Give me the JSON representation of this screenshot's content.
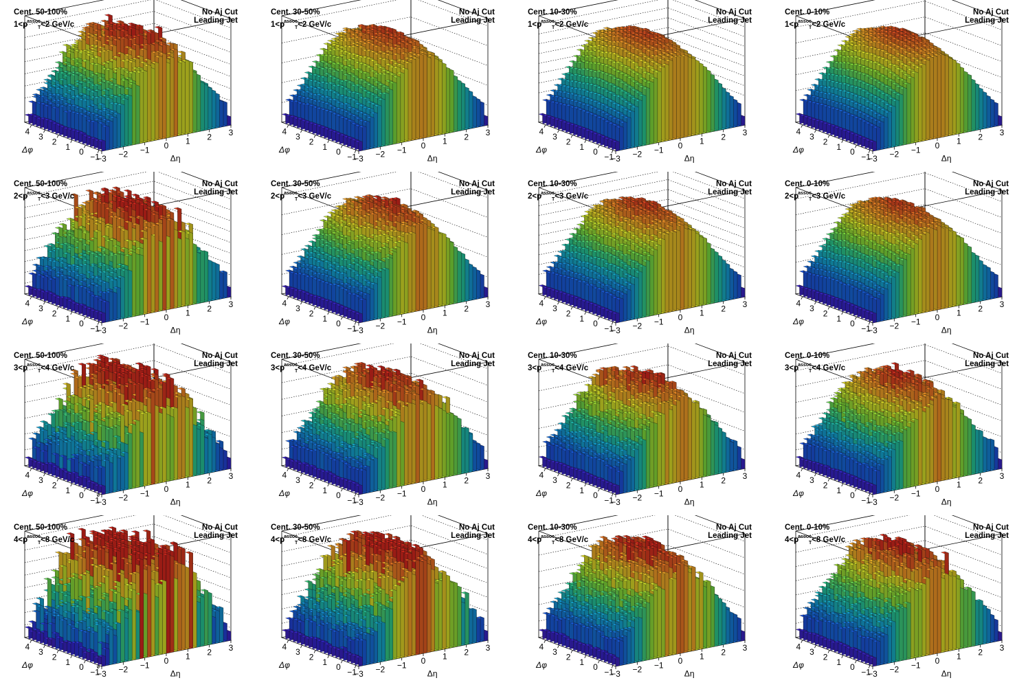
{
  "chart_data": [
    {
      "type": "3d-bar",
      "centrality": "Cent. 50-100%",
      "pt_lo": "1",
      "pt_hi": "2",
      "aj_cut": "No Aj Cut",
      "jet": "Leading Jet",
      "xlabel": "Δη",
      "ylabel": "Δφ",
      "x_range": [
        -3,
        3
      ],
      "y_range": [
        -1.2,
        4.5
      ],
      "z_ticks": [
        "0.02",
        "0.03",
        "0.04",
        "0.05",
        "0.06",
        "0.07",
        "0.08"
      ],
      "zmax": 0.085,
      "noise": 0.09,
      "spikes": 0.1
    },
    {
      "type": "3d-bar",
      "centrality": "Cent. 30-50%",
      "pt_lo": "1",
      "pt_hi": "2",
      "aj_cut": "No Aj Cut",
      "jet": "Leading Jet",
      "xlabel": "Δη",
      "ylabel": "Δφ",
      "x_range": [
        -3,
        3
      ],
      "y_range": [
        -1.2,
        4.5
      ],
      "z_ticks": [
        "0.005",
        "0.01",
        "0.015",
        "0.02",
        "0.025"
      ],
      "zmax": 0.026,
      "noise": 0.03,
      "spikes": 0.04
    },
    {
      "type": "3d-bar",
      "centrality": "Cent. 10-30%",
      "pt_lo": "1",
      "pt_hi": "2",
      "aj_cut": "No Aj Cut",
      "jet": "Leading Jet",
      "xlabel": "Δη",
      "ylabel": "Δφ",
      "x_range": [
        -3,
        3
      ],
      "y_range": [
        -1.2,
        4.5
      ],
      "z_ticks": [
        "0.003",
        "0.004",
        "0.005",
        "0.006",
        "0.007",
        "0.008",
        "0.009",
        "0.01"
      ],
      "zmax": 0.0105,
      "noise": 0.015,
      "spikes": 0.02
    },
    {
      "type": "3d-bar",
      "centrality": "Cent. 0-10%",
      "pt_lo": "1",
      "pt_hi": "2",
      "aj_cut": "No Aj Cut",
      "jet": "Leading Jet",
      "xlabel": "Δη",
      "ylabel": "Δφ",
      "x_range": [
        -3,
        3
      ],
      "y_range": [
        -1.2,
        4.5
      ],
      "z_ticks": [
        "0.004",
        "0.006",
        "0.008",
        "0.01",
        "0.012"
      ],
      "zmax": 0.013,
      "noise": 0.012,
      "spikes": 0.015
    },
    {
      "type": "3d-bar",
      "centrality": "Cent. 50-100%",
      "pt_lo": "2",
      "pt_hi": "3",
      "aj_cut": "No Aj Cut",
      "jet": "Leading Jet",
      "xlabel": "Δη",
      "ylabel": "Δφ",
      "x_range": [
        -3,
        3
      ],
      "y_range": [
        -1.2,
        4.5
      ],
      "z_ticks": [
        "0.01",
        "0.02",
        "0.03",
        "0.04",
        "0.05",
        "0.06",
        "0.07",
        "0.08",
        "0.09"
      ],
      "zmax": 0.095,
      "noise": 0.14,
      "spikes": 0.14
    },
    {
      "type": "3d-bar",
      "centrality": "Cent. 30-50%",
      "pt_lo": "2",
      "pt_hi": "3",
      "aj_cut": "No Aj Cut",
      "jet": "Leading Jet",
      "xlabel": "Δη",
      "ylabel": "Δφ",
      "x_range": [
        -3,
        3
      ],
      "y_range": [
        -1.2,
        4.5
      ],
      "z_ticks": [
        "0.005",
        "0.01",
        "0.015",
        "0.02",
        "0.025"
      ],
      "zmax": 0.026,
      "noise": 0.05,
      "spikes": 0.06
    },
    {
      "type": "3d-bar",
      "centrality": "Cent. 10-30%",
      "pt_lo": "2",
      "pt_hi": "3",
      "aj_cut": "No Aj Cut",
      "jet": "Leading Jet",
      "xlabel": "Δη",
      "ylabel": "Δφ",
      "x_range": [
        -3,
        3
      ],
      "y_range": [
        -1.2,
        4.5
      ],
      "z_ticks": [
        "0.002",
        "0.003",
        "0.004",
        "0.005",
        "0.006",
        "0.007",
        "0.008",
        "0.009",
        "0.01"
      ],
      "zmax": 0.0105,
      "noise": 0.03,
      "spikes": 0.04
    },
    {
      "type": "3d-bar",
      "centrality": "Cent. 0-10%",
      "pt_lo": "2",
      "pt_hi": "3",
      "aj_cut": "No Aj Cut",
      "jet": "Leading Jet",
      "xlabel": "Δη",
      "ylabel": "Δφ",
      "x_range": [
        -3,
        3
      ],
      "y_range": [
        -1.2,
        4.5
      ],
      "z_ticks": [
        "0.004",
        "0.006",
        "0.008",
        "0.01",
        "0.012"
      ],
      "zmax": 0.013,
      "noise": 0.025,
      "spikes": 0.03
    },
    {
      "type": "3d-bar",
      "centrality": "Cent. 50-100%",
      "pt_lo": "3",
      "pt_hi": "4",
      "aj_cut": "No Aj Cut",
      "jet": "Leading Jet",
      "xlabel": "Δη",
      "ylabel": "Δφ",
      "x_range": [
        -3,
        3
      ],
      "y_range": [
        -1.2,
        4.5
      ],
      "z_ticks": [
        "0",
        "0.02",
        "0.04",
        "0.06",
        "0.08",
        "0.1",
        "0.12"
      ],
      "zmax": 0.13,
      "noise": 0.22,
      "spikes": 0.2
    },
    {
      "type": "3d-bar",
      "centrality": "Cent. 30-50%",
      "pt_lo": "3",
      "pt_hi": "4",
      "aj_cut": "No Aj Cut",
      "jet": "Leading Jet",
      "xlabel": "Δη",
      "ylabel": "Δφ",
      "x_range": [
        -3,
        3
      ],
      "y_range": [
        -1.2,
        4.5
      ],
      "z_ticks": [
        "0.005",
        "0.01",
        "0.015",
        "0.02",
        "0.025",
        "0.03"
      ],
      "zmax": 0.031,
      "noise": 0.1,
      "spikes": 0.1
    },
    {
      "type": "3d-bar",
      "centrality": "Cent. 10-30%",
      "pt_lo": "3",
      "pt_hi": "4",
      "aj_cut": "No Aj Cut",
      "jet": "Leading Jet",
      "xlabel": "Δη",
      "ylabel": "Δφ",
      "x_range": [
        -3,
        3
      ],
      "y_range": [
        -1.2,
        4.5
      ],
      "z_ticks": [
        "0.002",
        "0.004",
        "0.006",
        "0.008",
        "0.01"
      ],
      "zmax": 0.011,
      "noise": 0.07,
      "spikes": 0.08
    },
    {
      "type": "3d-bar",
      "centrality": "Cent. 0-10%",
      "pt_lo": "3",
      "pt_hi": "4",
      "aj_cut": "No Aj Cut",
      "jet": "Leading Jet",
      "xlabel": "Δη",
      "ylabel": "Δφ",
      "x_range": [
        -3,
        3
      ],
      "y_range": [
        -1.2,
        4.5
      ],
      "z_ticks": [
        "0.002",
        "0.004",
        "0.006",
        "0.008",
        "0.01",
        "0.012"
      ],
      "zmax": 0.013,
      "noise": 0.06,
      "spikes": 0.07
    },
    {
      "type": "3d-bar",
      "centrality": "Cent. 50-100%",
      "pt_lo": "4",
      "pt_hi": "8",
      "aj_cut": "No Aj Cut",
      "jet": "Leading Jet",
      "xlabel": "Δη",
      "ylabel": "Δφ",
      "x_range": [
        -3,
        3
      ],
      "y_range": [
        -1.2,
        4.5
      ],
      "z_ticks": [
        "0",
        "0.02",
        "0.04",
        "0.06",
        "0.08",
        "0.1",
        "0.12",
        "0.14",
        "0.16"
      ],
      "zmax": 0.165,
      "noise": 0.3,
      "spikes": 0.22
    },
    {
      "type": "3d-bar",
      "centrality": "Cent. 30-50%",
      "pt_lo": "4",
      "pt_hi": "8",
      "aj_cut": "No Aj Cut",
      "jet": "Leading Jet",
      "xlabel": "Δη",
      "ylabel": "Δφ",
      "x_range": [
        -3,
        3
      ],
      "y_range": [
        -1.2,
        4.5
      ],
      "z_ticks": [
        "0.005",
        "0.01",
        "0.015",
        "0.02",
        "0.025",
        "0.03",
        "0.035"
      ],
      "zmax": 0.036,
      "noise": 0.16,
      "spikes": 0.14
    },
    {
      "type": "3d-bar",
      "centrality": "Cent. 10-30%",
      "pt_lo": "4",
      "pt_hi": "8",
      "aj_cut": "No Aj Cut",
      "jet": "Leading Jet",
      "xlabel": "Δη",
      "ylabel": "Δφ",
      "x_range": [
        -3,
        3
      ],
      "y_range": [
        -1.2,
        4.5
      ],
      "z_ticks": [
        "0.002",
        "0.004",
        "0.006",
        "0.008",
        "0.01",
        "0.012"
      ],
      "zmax": 0.0125,
      "noise": 0.1,
      "spikes": 0.1
    },
    {
      "type": "3d-bar",
      "centrality": "Cent. 0-10%",
      "pt_lo": "4",
      "pt_hi": "8",
      "aj_cut": "No Aj Cut",
      "jet": "Leading Jet",
      "xlabel": "Δη",
      "ylabel": "Δφ",
      "x_range": [
        -3,
        3
      ],
      "y_range": [
        -1.2,
        4.5
      ],
      "z_ticks": [
        "0.002",
        "0.004",
        "0.006",
        "0.008",
        "0.01",
        "0.012",
        "0.014"
      ],
      "zmax": 0.0145,
      "noise": 0.09,
      "spikes": 0.1
    }
  ],
  "labels": {
    "pt_prefix": "<p",
    "pt_sup": "assoc.",
    "pt_sub": "T",
    "pt_suffix": " GeV/c",
    "x_ticks": [
      "−3",
      "−2",
      "−1",
      "0",
      "1",
      "2",
      "3"
    ],
    "y_ticks": [
      "−1",
      "0",
      "1",
      "2",
      "3",
      "4"
    ],
    "pt_lt": "<"
  }
}
